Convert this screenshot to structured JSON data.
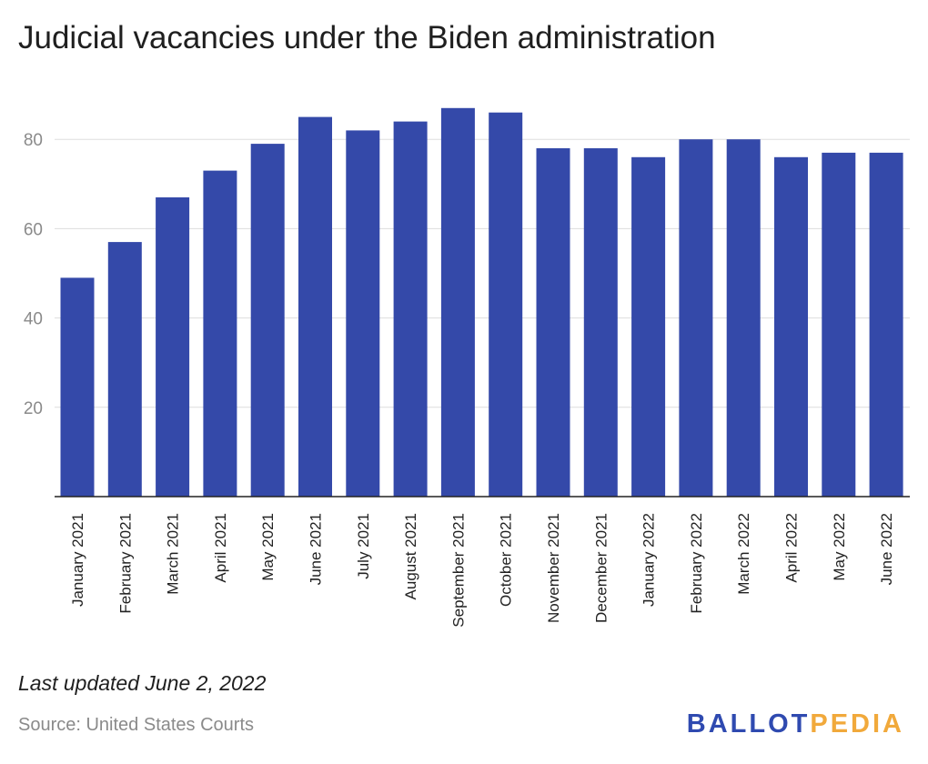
{
  "chart_data": {
    "type": "bar",
    "title": "Judicial vacancies under the Biden administration",
    "xlabel": "",
    "ylabel": "",
    "ylim": [
      0,
      90
    ],
    "yticks": [
      20,
      40,
      60,
      80
    ],
    "grid": true,
    "bar_color": "#3449a9",
    "categories": [
      "January 2021",
      "February 2021",
      "March 2021",
      "April 2021",
      "May 2021",
      "June 2021",
      "July 2021",
      "August 2021",
      "September 2021",
      "October 2021",
      "November 2021",
      "December 2021",
      "January 2022",
      "February 2022",
      "March 2022",
      "April 2022",
      "May 2022",
      "June 2022"
    ],
    "values": [
      49,
      57,
      67,
      73,
      79,
      85,
      82,
      84,
      87,
      86,
      78,
      78,
      76,
      80,
      80,
      76,
      77,
      77
    ]
  },
  "footer": {
    "updated": "Last updated June 2, 2022",
    "source": "Source: United States Courts"
  },
  "logo": {
    "part1": "BALLOT",
    "part2": "PEDIA",
    "color1": "#2f4ab0",
    "color2": "#f1a93b"
  }
}
